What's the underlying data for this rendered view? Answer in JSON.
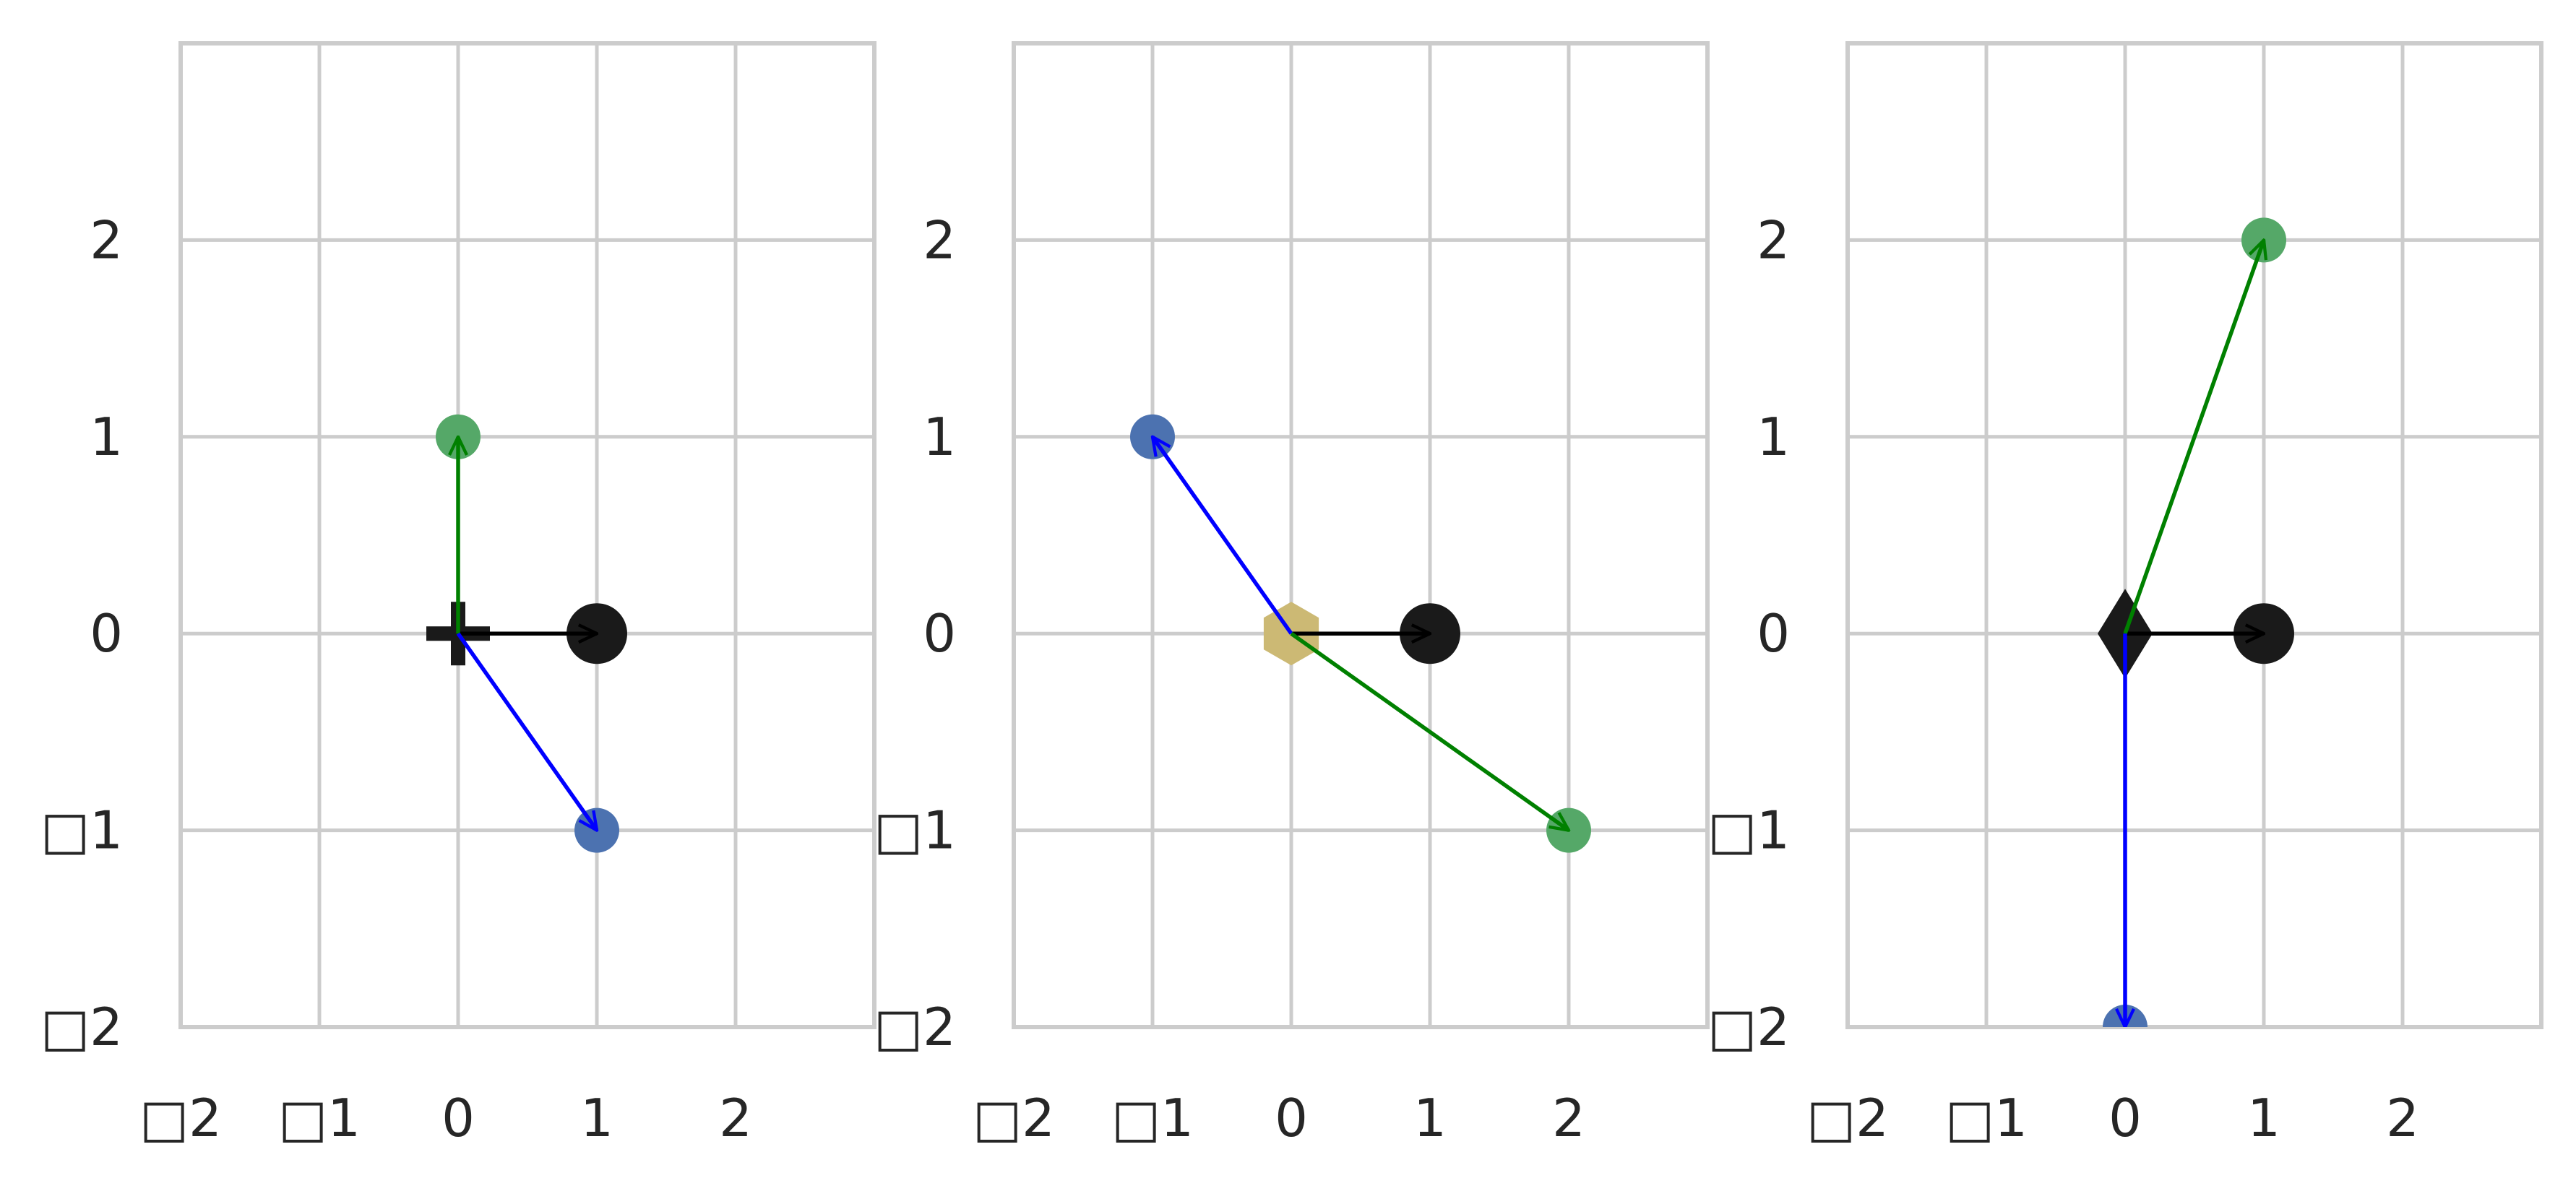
{
  "colors": {
    "background": "#ffffff",
    "grid": "#cccccc",
    "spine": "#cccccc",
    "tick_text": "#262626",
    "point_black": "#1a1a1a",
    "point_blue": "#4c72b0",
    "point_green": "#55a868",
    "hexagon_tan": "#ccb974",
    "arrow_black": "#000000",
    "arrow_blue": "#0000ff",
    "arrow_green": "#008000"
  },
  "chart_data": [
    {
      "type": "scatter",
      "xlim": [
        -2,
        3
      ],
      "ylim": [
        -2,
        3
      ],
      "grid": true,
      "x_ticks": [
        -2,
        -1,
        0,
        1,
        2
      ],
      "y_ticks": [
        -2,
        -1,
        0,
        1,
        2
      ],
      "x_tick_labels": [
        "□2",
        "□1",
        "0",
        "1",
        "2"
      ],
      "y_tick_labels": [
        "□2",
        "□1",
        "0",
        "1",
        "2"
      ],
      "origin_marker": {
        "shape": "plus",
        "x": 0,
        "y": 0,
        "color": "#1a1a1a"
      },
      "points": [
        {
          "x": 1,
          "y": 0,
          "color": "#1a1a1a",
          "size": "large"
        },
        {
          "x": 0,
          "y": 1,
          "color": "#55a868",
          "size": "medium"
        },
        {
          "x": 1,
          "y": -1,
          "color": "#4c72b0",
          "size": "medium"
        }
      ],
      "arrows": [
        {
          "from": [
            0,
            0
          ],
          "to": [
            1,
            0
          ],
          "color": "#000000"
        },
        {
          "from": [
            0,
            0
          ],
          "to": [
            0,
            1
          ],
          "color": "#008000"
        },
        {
          "from": [
            0,
            0
          ],
          "to": [
            1,
            -1
          ],
          "color": "#0000ff"
        }
      ]
    },
    {
      "type": "scatter",
      "xlim": [
        -2,
        3
      ],
      "ylim": [
        -2,
        3
      ],
      "grid": true,
      "x_ticks": [
        -2,
        -1,
        0,
        1,
        2
      ],
      "y_ticks": [
        -2,
        -1,
        0,
        1,
        2
      ],
      "x_tick_labels": [
        "□2",
        "□1",
        "0",
        "1",
        "2"
      ],
      "y_tick_labels": [
        "□2",
        "□1",
        "0",
        "1",
        "2"
      ],
      "origin_marker": {
        "shape": "hexagon",
        "x": 0,
        "y": 0,
        "color": "#ccb974"
      },
      "points": [
        {
          "x": 1,
          "y": 0,
          "color": "#1a1a1a",
          "size": "large"
        },
        {
          "x": -1,
          "y": 1,
          "color": "#4c72b0",
          "size": "medium"
        },
        {
          "x": 2,
          "y": -1,
          "color": "#55a868",
          "size": "medium"
        }
      ],
      "arrows": [
        {
          "from": [
            0,
            0
          ],
          "to": [
            1,
            0
          ],
          "color": "#000000"
        },
        {
          "from": [
            0,
            0
          ],
          "to": [
            -1,
            1
          ],
          "color": "#0000ff"
        },
        {
          "from": [
            0,
            0
          ],
          "to": [
            2,
            -1
          ],
          "color": "#008000"
        }
      ]
    },
    {
      "type": "scatter",
      "xlim": [
        -2,
        3
      ],
      "ylim": [
        -2,
        3
      ],
      "grid": true,
      "x_ticks": [
        -2,
        -1,
        0,
        1,
        2
      ],
      "y_ticks": [
        -2,
        -1,
        0,
        1,
        2
      ],
      "x_tick_labels": [
        "□2",
        "□1",
        "0",
        "1",
        "2"
      ],
      "y_tick_labels": [
        "□2",
        "□1",
        "0",
        "1",
        "2"
      ],
      "origin_marker": {
        "shape": "diamond",
        "x": 0,
        "y": 0,
        "color": "#1a1a1a"
      },
      "points": [
        {
          "x": 1,
          "y": 0,
          "color": "#1a1a1a",
          "size": "large"
        },
        {
          "x": 1,
          "y": 2,
          "color": "#55a868",
          "size": "medium"
        },
        {
          "x": 0,
          "y": -2,
          "color": "#4c72b0",
          "size": "medium"
        }
      ],
      "arrows": [
        {
          "from": [
            0,
            0
          ],
          "to": [
            1,
            0
          ],
          "color": "#000000"
        },
        {
          "from": [
            0,
            0
          ],
          "to": [
            1,
            2
          ],
          "color": "#008000"
        },
        {
          "from": [
            0,
            0
          ],
          "to": [
            0,
            -2
          ],
          "color": "#0000ff"
        }
      ]
    }
  ]
}
